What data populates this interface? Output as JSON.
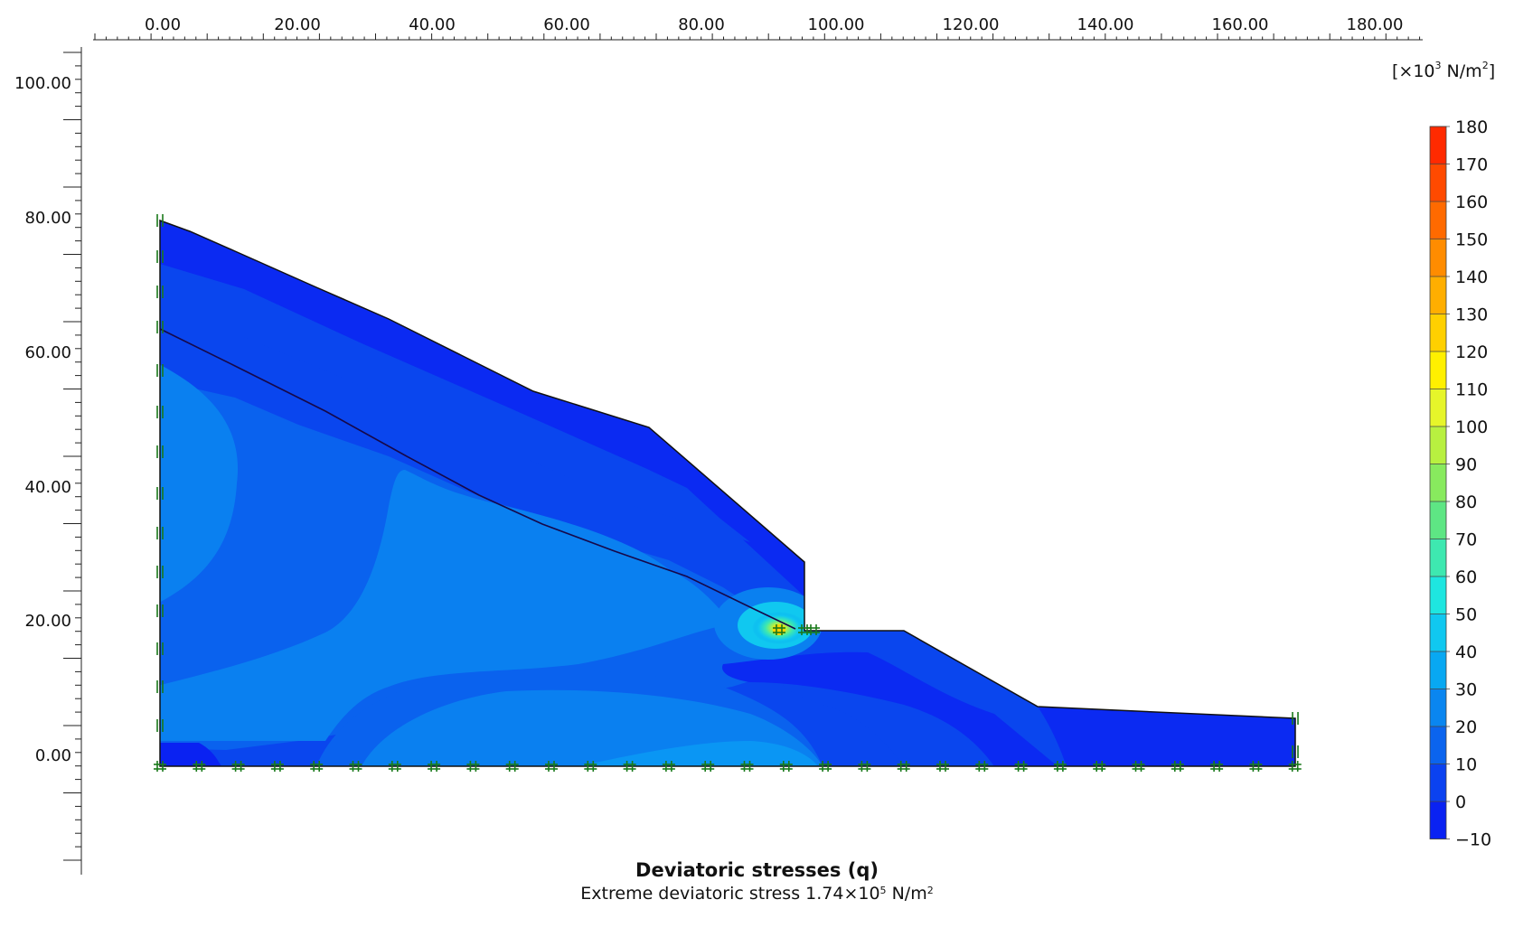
{
  "figure": {
    "title": "Deviatoric stresses (q)",
    "subtitle_prefix": "Extreme deviatoric stress 1.74×10",
    "subtitle_exponent": "5",
    "subtitle_unit": " N/m",
    "subtitle_unit_exponent": "2"
  },
  "x_axis": {
    "tick_labels": [
      "0.00",
      "20.00",
      "40.00",
      "60.00",
      "80.00",
      "100.00",
      "120.00",
      "140.00",
      "160.00",
      "180.00"
    ]
  },
  "y_axis": {
    "tick_labels": [
      "0.00",
      "20.00",
      "40.00",
      "60.00",
      "80.00",
      "100.00"
    ]
  },
  "legend": {
    "unit_prefix": "[×10",
    "unit_exponent": "3",
    "unit_middle": " N/m",
    "unit_exponent2": "2",
    "unit_suffix": "]",
    "levels": [
      {
        "label": "180",
        "color": "#ff2a00"
      },
      {
        "label": "170",
        "color": "#ff4a00"
      },
      {
        "label": "160",
        "color": "#ff6a00"
      },
      {
        "label": "150",
        "color": "#ff8c00"
      },
      {
        "label": "140",
        "color": "#ffae00"
      },
      {
        "label": "130",
        "color": "#ffd000"
      },
      {
        "label": "120",
        "color": "#fff000"
      },
      {
        "label": "110",
        "color": "#e6f52a"
      },
      {
        "label": "100",
        "color": "#b8f040"
      },
      {
        "label": "90",
        "color": "#88ea5e"
      },
      {
        "label": "80",
        "color": "#5ee684"
      },
      {
        "label": "70",
        "color": "#3ee8b0"
      },
      {
        "label": "60",
        "color": "#1ee6e0"
      },
      {
        "label": "50",
        "color": "#10c8f0"
      },
      {
        "label": "40",
        "color": "#08a8f2"
      },
      {
        "label": "30",
        "color": "#0a86f0"
      },
      {
        "label": "20",
        "color": "#0b64ee"
      },
      {
        "label": "10",
        "color": "#0b42f0"
      },
      {
        "label": "0",
        "color": "#0a22f2"
      },
      {
        "label": "−10",
        "color": "#0000ee"
      }
    ]
  },
  "colors": {
    "band_top": "#0b2af2",
    "band_2": "#0a46ee",
    "band_3": "#0a62ee",
    "band_4": "#0a80f0",
    "band_5": "#0a96f4",
    "hot_core": "#ffd000",
    "boundary_fixity": "#1a7a1a"
  }
}
